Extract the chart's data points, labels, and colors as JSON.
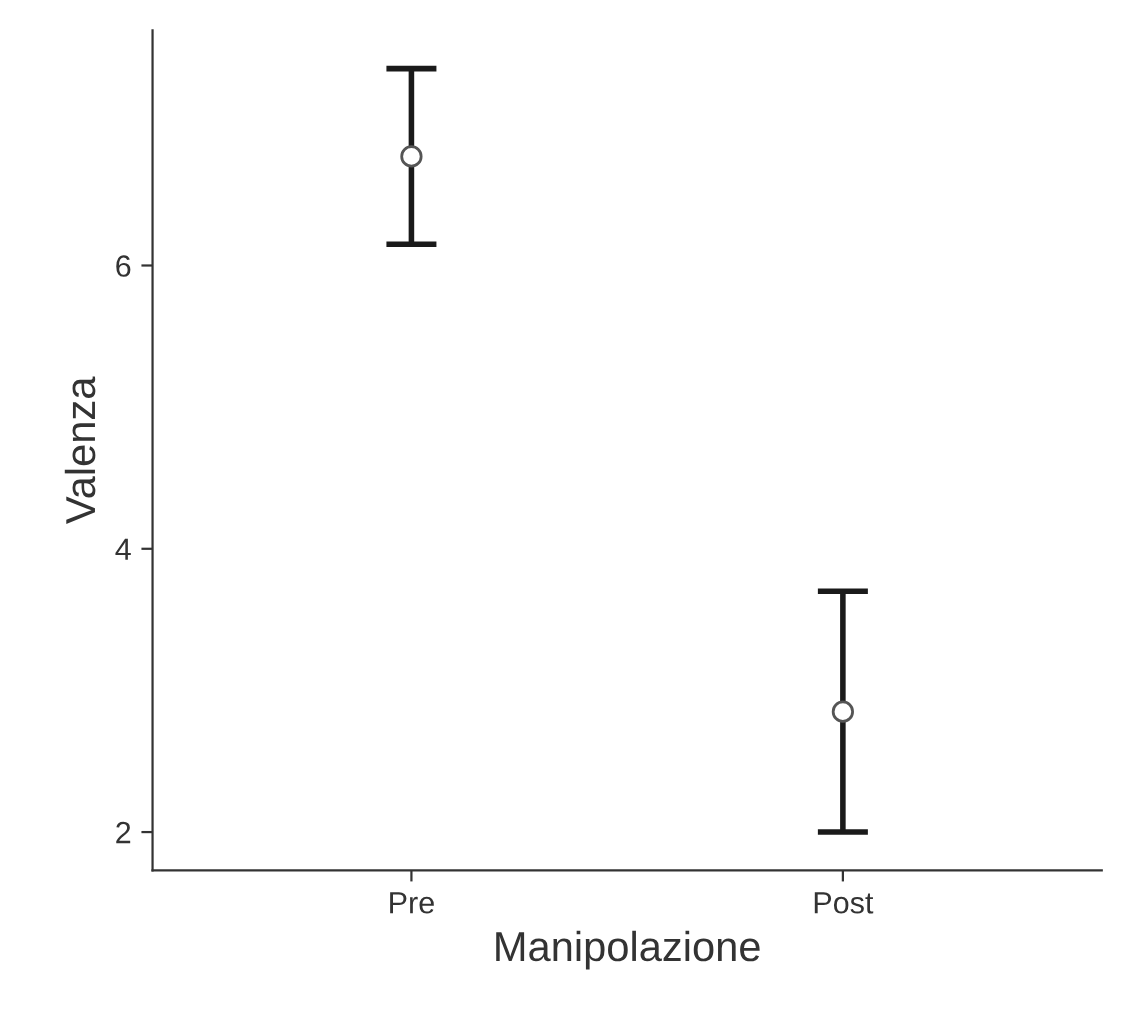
{
  "chart_data": {
    "type": "scatter",
    "xlabel": "Manipolazione",
    "ylabel": "Valenza",
    "categories": [
      "Pre",
      "Post"
    ],
    "series": [
      {
        "color": "#ffffff",
        "values": [
          6.77,
          2.85
        ],
        "errors": [
          [
            6.15,
            7.39
          ],
          [
            2.0,
            3.7
          ]
        ]
      }
    ],
    "ylim": [
      1.73,
      7.66
    ],
    "yticks": [
      2,
      4,
      6
    ],
    "marker": "circle",
    "grid": false,
    "legend": false
  }
}
